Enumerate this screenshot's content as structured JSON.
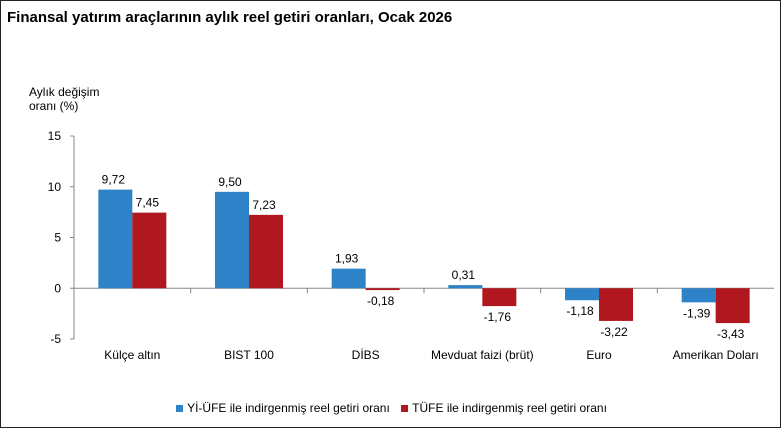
{
  "chart_data": {
    "type": "bar",
    "title": "Finansal yatırım araçlarının aylık reel getiri oranları, Ocak 2026",
    "ylabel": "Aylık değişim oranı (%)",
    "xlabel": "",
    "categories": [
      "Külçe altın",
      "BIST 100",
      "DİBS",
      "Mevduat faizi (brüt)",
      "Euro",
      "Amerikan Doları"
    ],
    "series": [
      {
        "name": "Yİ-ÜFE ile indirgenmiş reel getiri oranı",
        "color": "#2E83C8",
        "values": [
          9.72,
          9.5,
          1.93,
          0.31,
          -1.18,
          -1.39
        ],
        "labels": [
          "9,72",
          "9,50",
          "1,93",
          "0,31",
          "-1,18",
          "-1,39"
        ]
      },
      {
        "name": "TÜFE ile indirgenmiş reel getiri oranı",
        "color": "#B0171F",
        "values": [
          7.45,
          7.23,
          -0.18,
          -1.76,
          -3.22,
          -3.43
        ],
        "labels": [
          "7,45",
          "7,23",
          "-0,18",
          "-1,76",
          "-3,22",
          "-3,43"
        ]
      }
    ],
    "ylim": [
      -5,
      15
    ],
    "yticks": [
      -5,
      0,
      5,
      10,
      15
    ],
    "grid": false,
    "legend_position": "bottom"
  }
}
